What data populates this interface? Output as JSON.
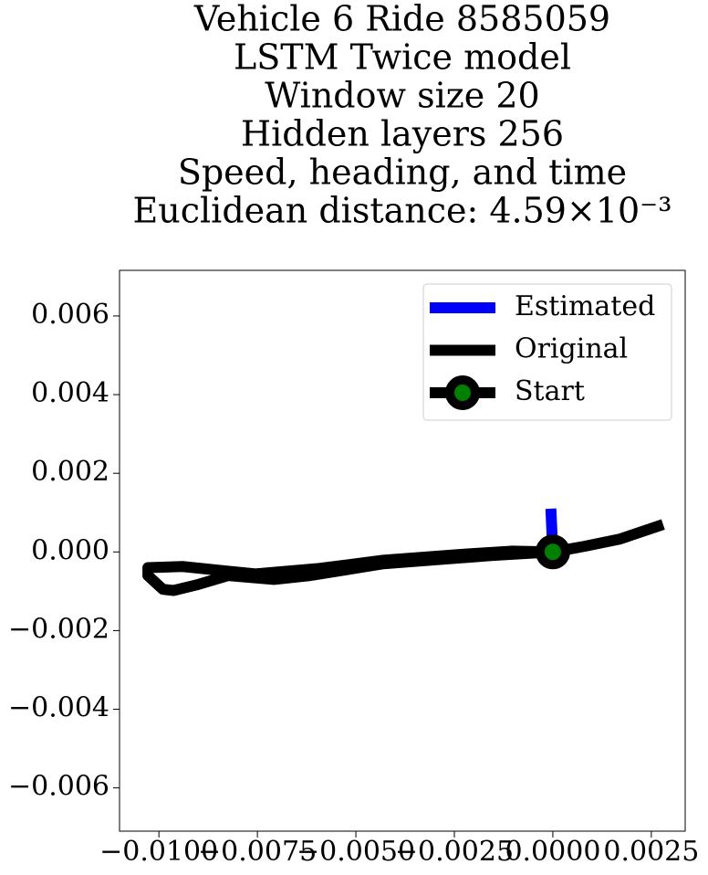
{
  "chart_data": {
    "type": "line",
    "title": [
      "Vehicle 6 Ride 8585059",
      "LSTM Twice model",
      "Window size 20",
      "Hidden layers 256",
      "Speed, heading, and time",
      "Euclidean distance: 4.59×10⁻³"
    ],
    "xlim": [
      -0.011,
      0.00336
    ],
    "ylim": [
      -0.0071,
      0.00716
    ],
    "xticks": [
      {
        "value": -0.01,
        "label": "−0.0100"
      },
      {
        "value": -0.0075,
        "label": "−0.0075"
      },
      {
        "value": -0.005,
        "label": "−0.0050"
      },
      {
        "value": -0.0025,
        "label": "−0.0025"
      },
      {
        "value": 0,
        "label": "0.0000"
      },
      {
        "value": 0.0025,
        "label": "0.0025"
      }
    ],
    "yticks": [
      {
        "value": -0.006,
        "label": "−0.006"
      },
      {
        "value": -0.004,
        "label": "−0.004"
      },
      {
        "value": -0.002,
        "label": "−0.002"
      },
      {
        "value": 0,
        "label": "0.000"
      },
      {
        "value": 0.002,
        "label": "0.002"
      },
      {
        "value": 0.004,
        "label": "0.004"
      },
      {
        "value": 0.006,
        "label": "0.006"
      }
    ],
    "legend": "upper right",
    "series": [
      {
        "name": "Estimated",
        "color": "blue",
        "x": [
          -5e-05,
          0
        ],
        "values": [
          0.0011,
          0
        ]
      },
      {
        "name": "Original",
        "color": "black",
        "x": [
          0.0028,
          0.00171,
          0.00079,
          0,
          -0.00153,
          -0.00245,
          -0.0043,
          -0.00616,
          -0.00708,
          -0.00824,
          -0.00905,
          -0.00963,
          -0.0099,
          -0.01028,
          -0.01028,
          -0.0094,
          -0.00755,
          -0.00593,
          -0.0043,
          -0.00245,
          -0.00106,
          0
        ],
        "values": [
          0.0007,
          0.00033,
          0.00014,
          0,
          -9e-05,
          -0.00016,
          -0.0003,
          -0.0006,
          -0.0007,
          -0.0006,
          -0.00084,
          -0.00098,
          -0.00095,
          -0.0006,
          -0.0004,
          -0.00037,
          -0.00056,
          -0.00042,
          -0.00021,
          -7e-05,
          2e-05,
          0
        ]
      },
      {
        "name": "Start",
        "color": "black",
        "marker_color": "green",
        "x": [
          0
        ],
        "values": [
          0
        ]
      }
    ]
  }
}
